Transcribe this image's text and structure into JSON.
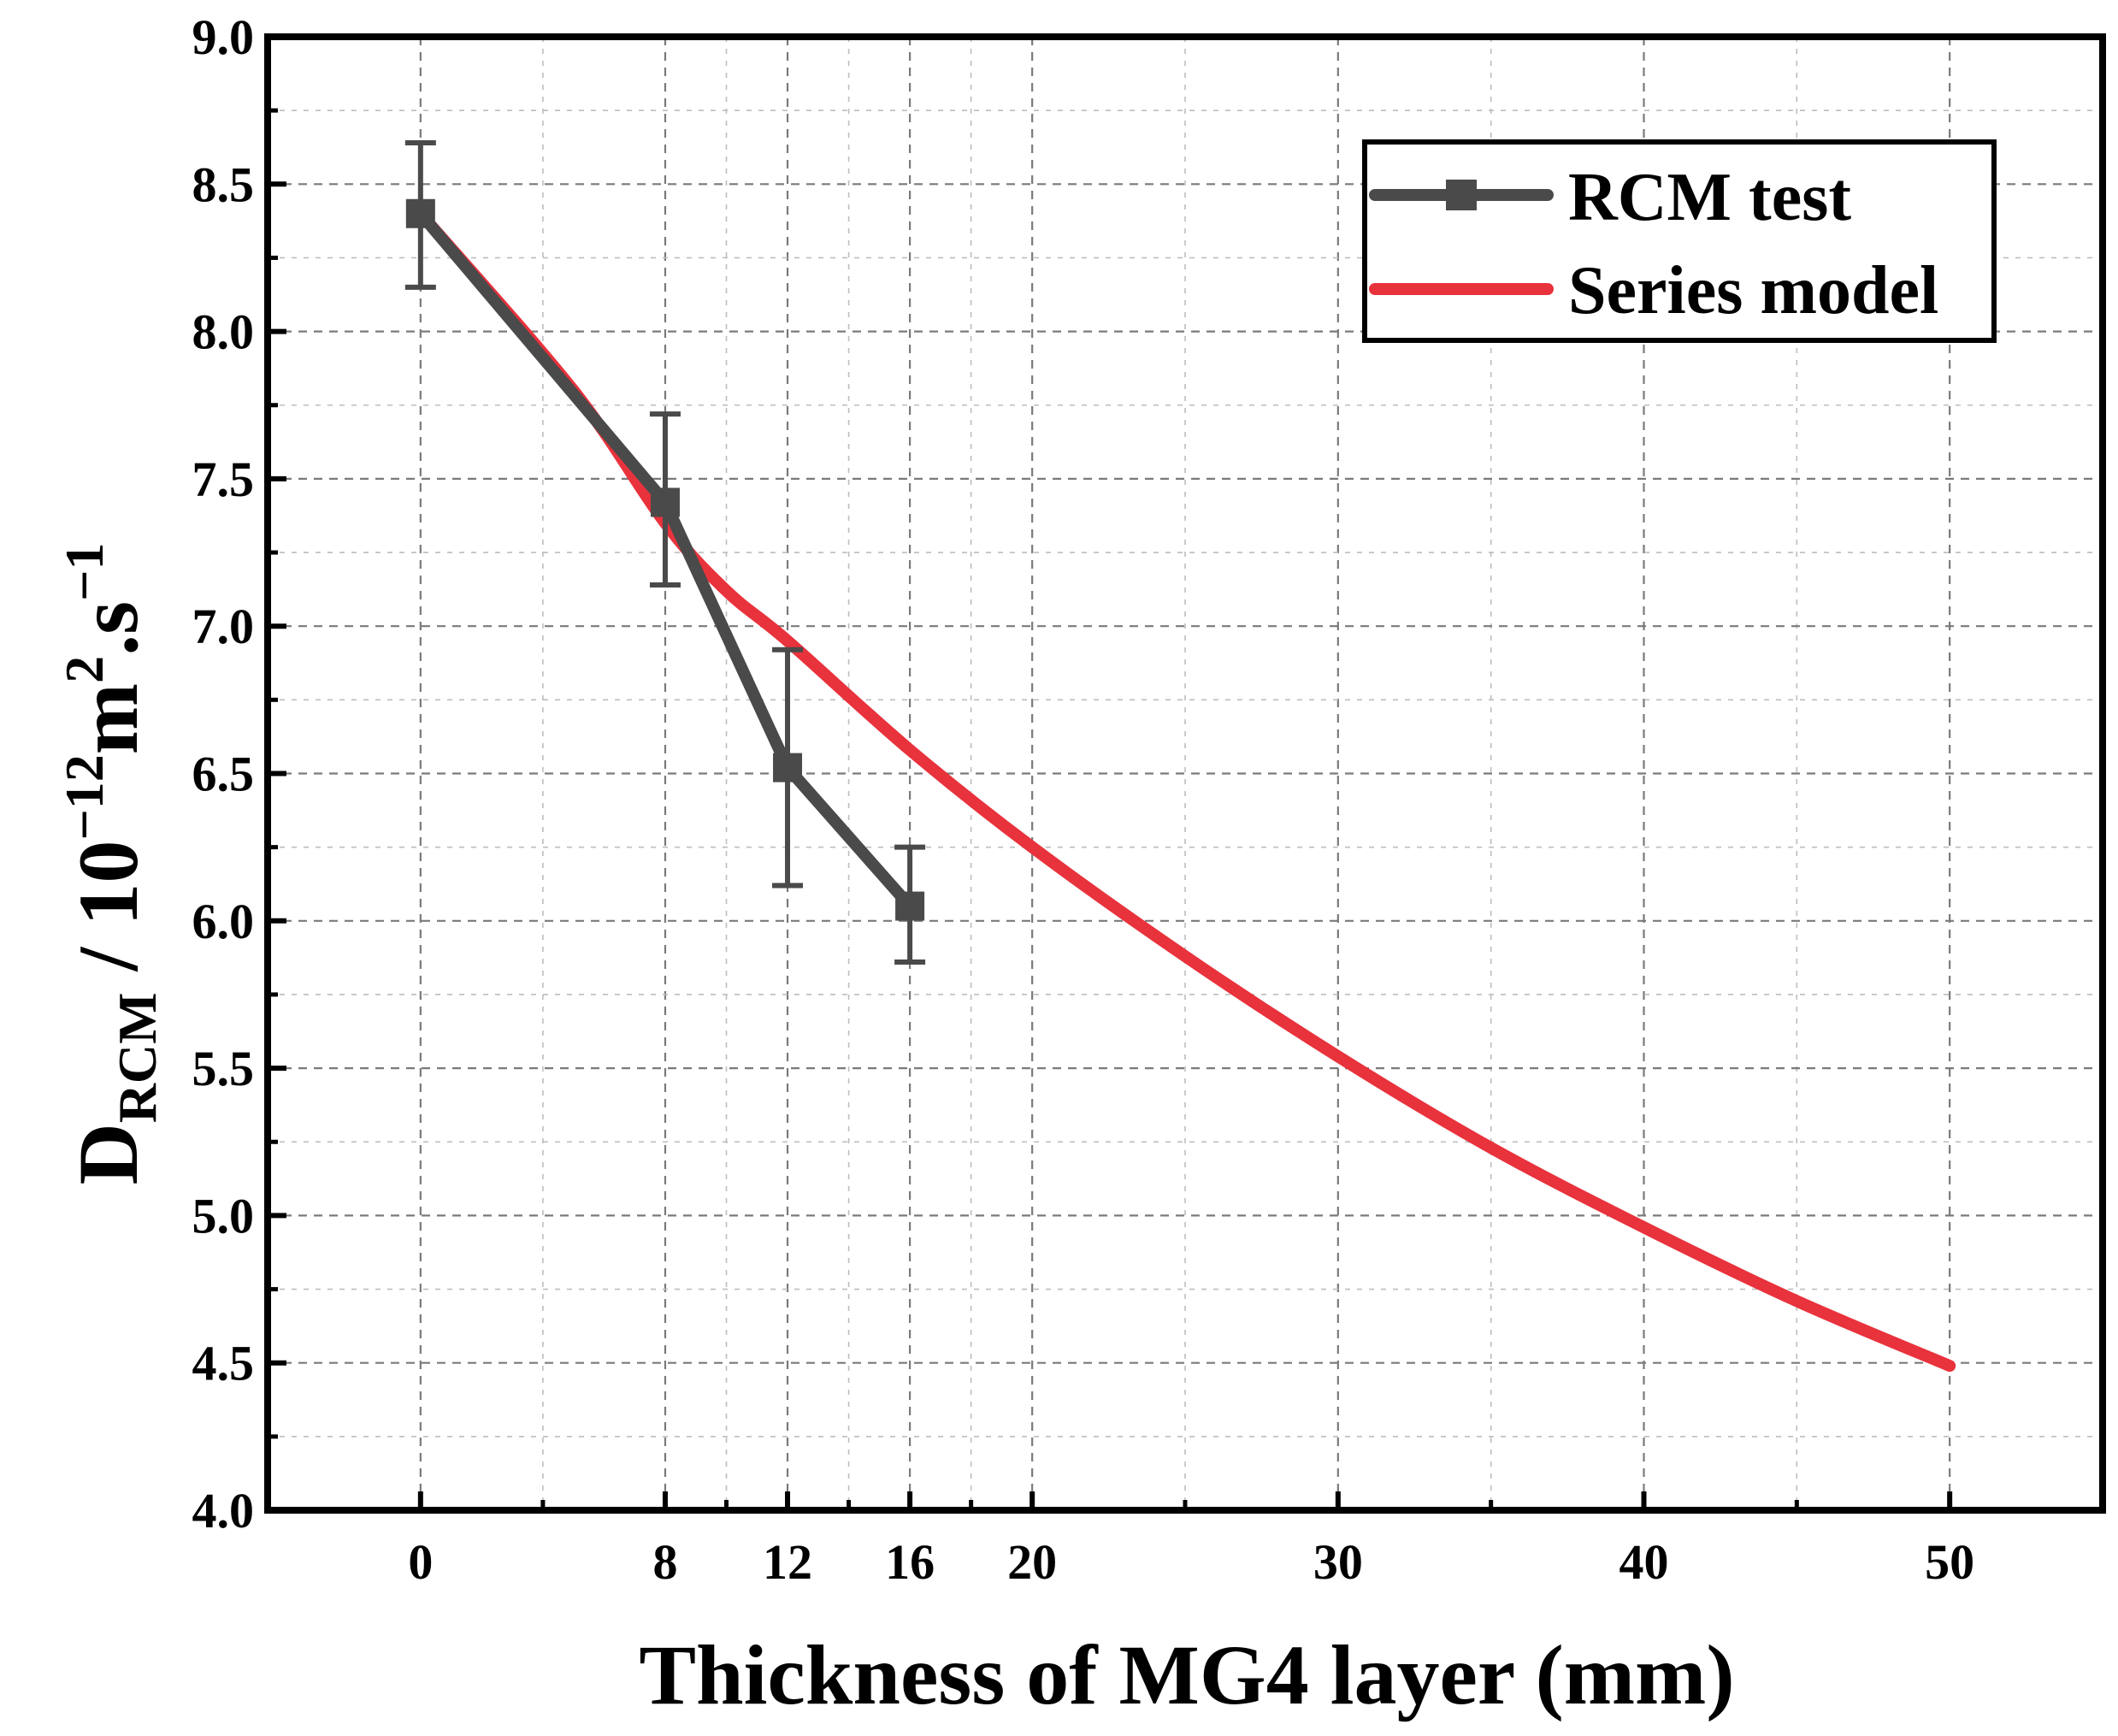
{
  "chart_data": {
    "type": "line",
    "xlabel": "Thickness of MG4 layer (mm)",
    "ylabel": {
      "main": "D",
      "subscript": "RCM",
      "slash": " / 10",
      "exp1": "−12",
      "unit_m": "m",
      "exp2": "2",
      "unit_s": ".s",
      "exp3": "−1"
    },
    "xlim": [
      -5,
      55
    ],
    "ylim": [
      4.0,
      9.0
    ],
    "x_ticks": [
      0,
      8,
      12,
      16,
      20,
      30,
      40,
      50
    ],
    "x_minor_ticks": [
      4,
      10,
      14,
      18,
      25,
      35,
      45
    ],
    "y_ticks": [
      4.0,
      4.5,
      5.0,
      5.5,
      6.0,
      6.5,
      7.0,
      7.5,
      8.0,
      8.5,
      9.0
    ],
    "y_tick_labels": [
      "4.0",
      "4.5",
      "5.0",
      "5.5",
      "6.0",
      "6.5",
      "7.0",
      "7.5",
      "8.0",
      "8.5",
      "9.0"
    ],
    "grid": true,
    "legend_position": "top-right",
    "series": [
      {
        "name": "RCM test",
        "style": "line-square-errorbar",
        "color": "#4a4a4a",
        "x": [
          0,
          8,
          12,
          16
        ],
        "y": [
          8.4,
          7.42,
          6.52,
          6.05
        ],
        "err_high": [
          8.64,
          7.72,
          6.92,
          6.25
        ],
        "err_low": [
          8.15,
          7.14,
          6.12,
          5.86
        ]
      },
      {
        "name": "Series model",
        "style": "line",
        "color": "#e8323c",
        "x": [
          0,
          5,
          8,
          10,
          12,
          16,
          20,
          25,
          30,
          35,
          40,
          45,
          50
        ],
        "y": [
          8.4,
          7.8,
          7.35,
          7.12,
          6.95,
          6.58,
          6.25,
          5.88,
          5.54,
          5.23,
          4.96,
          4.71,
          4.49
        ]
      }
    ]
  }
}
